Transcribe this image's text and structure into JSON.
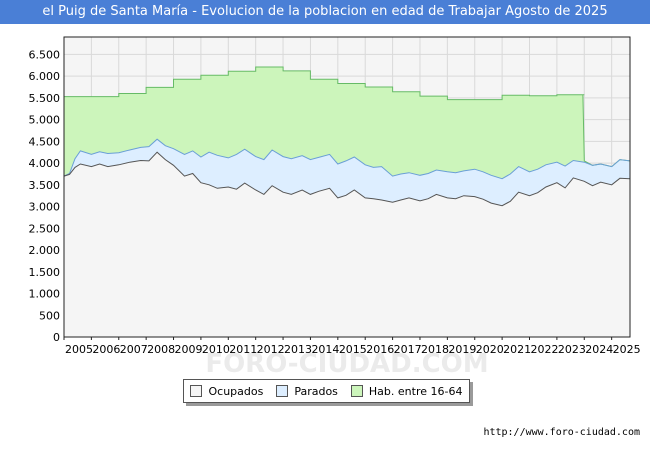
{
  "header": {
    "title": "el Puig de Santa María - Evolucion de la poblacion en edad de Trabajar Agosto de 2025"
  },
  "footer": {
    "source": "http://www.foro-ciudad.com"
  },
  "watermark": "FORO-CIUDAD.COM",
  "colors": {
    "title_bg": "#4a7fd6",
    "plot_bg": "#f5f5f5",
    "grid": "#d9d9d9",
    "ocupados_fill": "#f5f5f5",
    "parados_fill": "#ddeeff",
    "hab_fill": "#ccf5bb",
    "ocupados_line": "#555555",
    "parados_line": "#6a9fd6",
    "hab_line": "#66bb66"
  },
  "chart_data": {
    "type": "area",
    "title": "el Puig de Santa María - Evolucion de la poblacion en edad de Trabajar Agosto de 2025",
    "xlabel": "",
    "ylabel": "",
    "ylim": [
      0,
      6900
    ],
    "xlim": [
      2005.0,
      2025.67
    ],
    "grid": true,
    "y_ticks": [
      0,
      500,
      1000,
      1500,
      2000,
      2500,
      3000,
      3500,
      4000,
      4500,
      5000,
      5500,
      6000,
      6500
    ],
    "y_tick_labels": [
      "0",
      "500",
      "1.000",
      "1.500",
      "2.000",
      "2.500",
      "3.000",
      "3.500",
      "4.000",
      "4.500",
      "5.000",
      "5.500",
      "6.000",
      "6.500"
    ],
    "x_ticks": [
      "2005",
      "2006",
      "2007",
      "2008",
      "2009",
      "2010",
      "2011",
      "2012",
      "2013",
      "2014",
      "2015",
      "2016",
      "2017",
      "2018",
      "2019",
      "2020",
      "2021",
      "2022",
      "2023",
      "2024",
      "2025"
    ],
    "legend": {
      "position": "bottom-center",
      "entries": [
        {
          "label": "Ocupados",
          "color": "#f5f5f5"
        },
        {
          "label": "Parados",
          "color": "#ddeeff"
        },
        {
          "label": "Hab. entre 16-64",
          "color": "#ccf5bb"
        }
      ]
    },
    "series": [
      {
        "name": "Hab. entre 16-64",
        "kind": "step",
        "x": [
          2005,
          2006,
          2007,
          2008,
          2009,
          2010,
          2011,
          2012,
          2013,
          2014,
          2015,
          2016,
          2017,
          2018,
          2019,
          2020,
          2021,
          2022,
          2023,
          2024
        ],
        "values": [
          5530,
          5530,
          5600,
          5740,
          5930,
          6020,
          6110,
          6210,
          6120,
          5930,
          5830,
          5750,
          5640,
          5540,
          5460,
          5460,
          5560,
          5550,
          5570,
          5570
        ]
      },
      {
        "name": "Parados",
        "x": [
          2005.0,
          2005.2,
          2005.4,
          2005.6,
          2006.0,
          2006.3,
          2006.6,
          2007.0,
          2007.4,
          2007.8,
          2008.1,
          2008.4,
          2008.7,
          2009.0,
          2009.4,
          2009.7,
          2010.0,
          2010.3,
          2010.6,
          2011.0,
          2011.3,
          2011.6,
          2012.0,
          2012.3,
          2012.6,
          2013.0,
          2013.3,
          2013.7,
          2014.0,
          2014.3,
          2014.7,
          2015.0,
          2015.3,
          2015.6,
          2016.0,
          2016.3,
          2016.6,
          2017.0,
          2017.3,
          2017.6,
          2018.0,
          2018.3,
          2018.6,
          2019.0,
          2019.3,
          2019.6,
          2020.0,
          2020.3,
          2020.6,
          2021.0,
          2021.3,
          2021.6,
          2022.0,
          2022.3,
          2022.6,
          2023.0,
          2023.3,
          2023.6,
          2024.0,
          2024.3,
          2024.6,
          2025.0,
          2025.3,
          2025.67
        ],
        "values": [
          3700,
          3760,
          4100,
          4280,
          4200,
          4260,
          4220,
          4240,
          4300,
          4360,
          4380,
          4550,
          4400,
          4330,
          4200,
          4280,
          4140,
          4250,
          4180,
          4120,
          4200,
          4320,
          4150,
          4080,
          4300,
          4150,
          4100,
          4170,
          4080,
          4130,
          4200,
          3980,
          4050,
          4140,
          3960,
          3900,
          3920,
          3700,
          3750,
          3780,
          3720,
          3760,
          3840,
          3800,
          3780,
          3820,
          3860,
          3800,
          3720,
          3640,
          3750,
          3920,
          3800,
          3860,
          3960,
          4020,
          3930,
          4060,
          4020,
          3950,
          3980,
          3920,
          4080,
          4050
        ]
      },
      {
        "name": "Ocupados",
        "x": [
          2005.0,
          2005.2,
          2005.4,
          2005.6,
          2006.0,
          2006.3,
          2006.6,
          2007.0,
          2007.4,
          2007.8,
          2008.1,
          2008.4,
          2008.7,
          2009.0,
          2009.4,
          2009.7,
          2010.0,
          2010.3,
          2010.6,
          2011.0,
          2011.3,
          2011.6,
          2012.0,
          2012.3,
          2012.6,
          2013.0,
          2013.3,
          2013.7,
          2014.0,
          2014.3,
          2014.7,
          2015.0,
          2015.3,
          2015.6,
          2016.0,
          2016.3,
          2016.6,
          2017.0,
          2017.3,
          2017.6,
          2018.0,
          2018.3,
          2018.6,
          2019.0,
          2019.3,
          2019.6,
          2020.0,
          2020.3,
          2020.6,
          2021.0,
          2021.3,
          2021.6,
          2022.0,
          2022.3,
          2022.6,
          2023.0,
          2023.3,
          2023.6,
          2024.0,
          2024.3,
          2024.6,
          2025.0,
          2025.3,
          2025.67
        ],
        "values": [
          3700,
          3740,
          3900,
          3980,
          3920,
          3980,
          3920,
          3960,
          4020,
          4060,
          4050,
          4250,
          4080,
          3950,
          3700,
          3760,
          3550,
          3500,
          3420,
          3450,
          3400,
          3540,
          3380,
          3280,
          3480,
          3330,
          3280,
          3380,
          3280,
          3350,
          3420,
          3200,
          3260,
          3380,
          3200,
          3180,
          3150,
          3100,
          3150,
          3200,
          3130,
          3180,
          3280,
          3200,
          3180,
          3250,
          3230,
          3170,
          3080,
          3020,
          3120,
          3330,
          3250,
          3320,
          3450,
          3550,
          3430,
          3660,
          3580,
          3480,
          3560,
          3500,
          3650,
          3640
        ]
      }
    ]
  }
}
